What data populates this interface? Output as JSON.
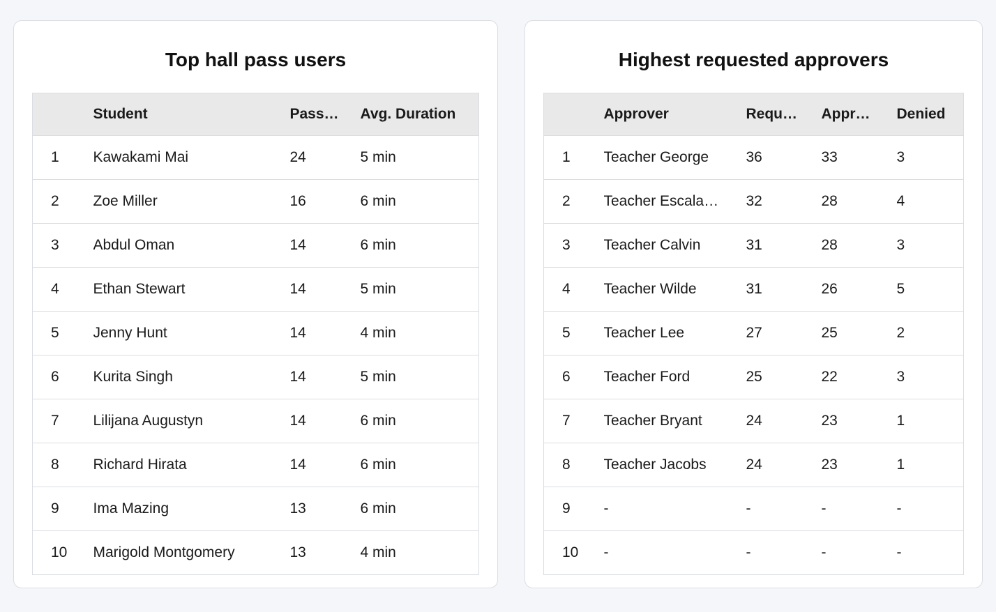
{
  "panels": [
    {
      "title": "Top hall pass users",
      "table": {
        "headers": [
          "Student",
          "Pass…",
          "Avg. Duration"
        ],
        "rows": [
          [
            1,
            "Kawakami Mai",
            24,
            "5 min"
          ],
          [
            2,
            "Zoe Miller",
            16,
            "6 min"
          ],
          [
            3,
            "Abdul Oman",
            14,
            "6 min"
          ],
          [
            4,
            "Ethan Stewart",
            14,
            "5 min"
          ],
          [
            5,
            "Jenny Hunt",
            14,
            "4 min"
          ],
          [
            6,
            "Kurita Singh",
            14,
            "5 min"
          ],
          [
            7,
            "Lilijana Augustyn",
            14,
            "6 min"
          ],
          [
            8,
            "Richard Hirata",
            14,
            "6 min"
          ],
          [
            9,
            "Ima Mazing",
            13,
            "6 min"
          ],
          [
            10,
            "Marigold Montgomery",
            13,
            "4 min"
          ]
        ]
      }
    },
    {
      "title": "Highest requested approvers",
      "table": {
        "headers": [
          "Approver",
          "Requ…",
          "Appr…",
          "Denied"
        ],
        "rows": [
          [
            1,
            "Teacher George",
            36,
            33,
            3
          ],
          [
            2,
            "Teacher Escala…",
            32,
            28,
            4
          ],
          [
            3,
            "Teacher Calvin",
            31,
            28,
            3
          ],
          [
            4,
            "Teacher Wilde",
            31,
            26,
            5
          ],
          [
            5,
            "Teacher Lee",
            27,
            25,
            2
          ],
          [
            6,
            "Teacher Ford",
            25,
            22,
            3
          ],
          [
            7,
            "Teacher Bryant",
            24,
            23,
            1
          ],
          [
            8,
            "Teacher Jacobs",
            24,
            23,
            1
          ],
          [
            9,
            "-",
            "-",
            "-",
            "-"
          ],
          [
            10,
            "-",
            "-",
            "-",
            "-"
          ]
        ]
      }
    }
  ]
}
